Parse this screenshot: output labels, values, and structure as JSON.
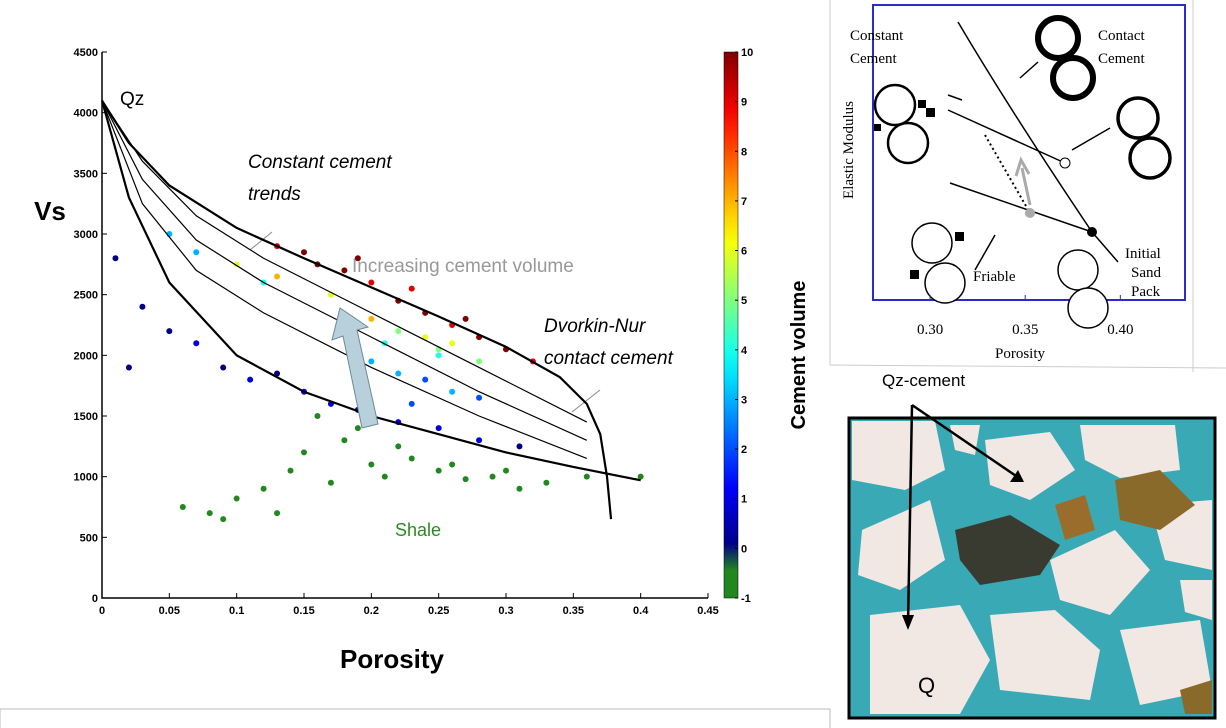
{
  "chart_data": [
    {
      "type": "scatter",
      "xlabel": "Porosity",
      "ylabel": "Vs",
      "xlim": [
        0,
        0.45
      ],
      "ylim": [
        0,
        4500
      ],
      "xticks": [
        0,
        0.05,
        0.1,
        0.15,
        0.2,
        0.25,
        0.3,
        0.35,
        0.4,
        0.45
      ],
      "yticks": [
        0,
        500,
        1000,
        1500,
        2000,
        2500,
        3000,
        3500,
        4000,
        4500
      ],
      "x": [
        0.06,
        0.08,
        0.1,
        0.12,
        0.14,
        0.15,
        0.17,
        0.18,
        0.2,
        0.21,
        0.23,
        0.25,
        0.27,
        0.29,
        0.31,
        0.33,
        0.36,
        0.4,
        0.09,
        0.13,
        0.16,
        0.19,
        0.22,
        0.26,
        0.3,
        0.01,
        0.03,
        0.05,
        0.07,
        0.09,
        0.11,
        0.13,
        0.15,
        0.17,
        0.19,
        0.22,
        0.25,
        0.28,
        0.31,
        0.02,
        0.05,
        0.07,
        0.12,
        0.2,
        0.22,
        0.24,
        0.26,
        0.28,
        0.21,
        0.25,
        0.23,
        0.1,
        0.13,
        0.17,
        0.22,
        0.24,
        0.26,
        0.2,
        0.25,
        0.28,
        0.13,
        0.15,
        0.18,
        0.2,
        0.22,
        0.24,
        0.26,
        0.28,
        0.3,
        0.32,
        0.19,
        0.23,
        0.27,
        0.16
      ],
      "y": [
        750,
        700,
        820,
        900,
        1050,
        1200,
        950,
        1300,
        1100,
        1000,
        1150,
        1050,
        980,
        1000,
        900,
        950,
        1000,
        1000,
        650,
        700,
        1500,
        1400,
        1250,
        1100,
        1050,
        2800,
        2400,
        2200,
        2100,
        1900,
        1800,
        1850,
        1700,
        1600,
        1550,
        1450,
        1400,
        1300,
        1250,
        1900,
        3000,
        2850,
        2600,
        1950,
        1850,
        1800,
        1700,
        1650,
        2100,
        2000,
        1600,
        2750,
        2650,
        2500,
        2200,
        2150,
        2100,
        2300,
        2050,
        1950,
        2900,
        2850,
        2700,
        2600,
        2450,
        2350,
        2250,
        2150,
        2050,
        1950,
        2800,
        2550,
        2300,
        2750
      ],
      "cement": [
        -1,
        -1,
        -1,
        -1,
        -1,
        -1,
        -1,
        -1,
        -1,
        -1,
        -1,
        -1,
        -1,
        -1,
        -1,
        -1,
        -1,
        -1,
        -1,
        -1,
        -1,
        -1,
        -1,
        -1,
        -1,
        0,
        0,
        0,
        1,
        0,
        1,
        0,
        1,
        1,
        0,
        1,
        1,
        1,
        0,
        0,
        3,
        3,
        4,
        3,
        3,
        2,
        3,
        2,
        4,
        4,
        2,
        6,
        7,
        6,
        5,
        6,
        6,
        7,
        5,
        5,
        9,
        10,
        10,
        9,
        10,
        10,
        9,
        10,
        10,
        9,
        10,
        9,
        10,
        10
      ],
      "colormap": "jet",
      "under_color": "#23871f",
      "colorbar": {
        "label": "Cement volume",
        "lim": [
          -1,
          10
        ],
        "ticks": [
          -1,
          0,
          1,
          2,
          3,
          4,
          5,
          6,
          7,
          8,
          9,
          10
        ]
      },
      "lines": [
        {
          "x": [
            0,
            0.02,
            0.05,
            0.1,
            0.15,
            0.2,
            0.25,
            0.3,
            0.34,
            0.36,
            0.37,
            0.375,
            0.378
          ],
          "y": [
            4100,
            3750,
            3400,
            3050,
            2800,
            2560,
            2320,
            2070,
            1820,
            1600,
            1350,
            1000,
            650
          ]
        },
        {
          "x": [
            0,
            0.03,
            0.07,
            0.12,
            0.2,
            0.28,
            0.36
          ],
          "y": [
            4100,
            3600,
            3150,
            2800,
            2350,
            1900,
            1450
          ]
        },
        {
          "x": [
            0,
            0.03,
            0.07,
            0.12,
            0.2,
            0.28,
            0.36
          ],
          "y": [
            4100,
            3450,
            2950,
            2600,
            2150,
            1700,
            1300
          ]
        },
        {
          "x": [
            0,
            0.03,
            0.07,
            0.12,
            0.2,
            0.28,
            0.36
          ],
          "y": [
            4100,
            3250,
            2700,
            2350,
            1900,
            1500,
            1150
          ]
        },
        {
          "x": [
            0,
            0.02,
            0.05,
            0.1,
            0.15,
            0.2,
            0.25,
            0.3,
            0.35,
            0.4
          ],
          "y": [
            4100,
            3300,
            2600,
            2000,
            1700,
            1500,
            1350,
            1200,
            1080,
            970
          ]
        }
      ],
      "annotations": {
        "qz": "Qz",
        "constant": [
          "Constant cement",
          "trends"
        ],
        "increasing": "Increasing cement volume",
        "contact": [
          "Dvorkin-Nur",
          "contact cement"
        ],
        "shale": "Shale"
      }
    },
    {
      "type": "schematic",
      "xlabel": "Porosity",
      "ylabel": "Elastic Modulus",
      "xlim": [
        0.27,
        0.434
      ],
      "xticks": [
        {
          "value": 0.3,
          "label": "0.30"
        },
        {
          "value": 0.35,
          "label": "0.35"
        },
        {
          "value": 0.4,
          "label": "0.40"
        }
      ],
      "labels": {
        "constant": [
          "Constant",
          "Cement"
        ],
        "contact": [
          "Contact",
          "Cement"
        ],
        "friable": "Friable",
        "initial": [
          "Initial",
          "Sand",
          "Pack"
        ]
      }
    }
  ],
  "photo": {
    "labels": [
      "Qz-cement",
      "Q"
    ]
  }
}
